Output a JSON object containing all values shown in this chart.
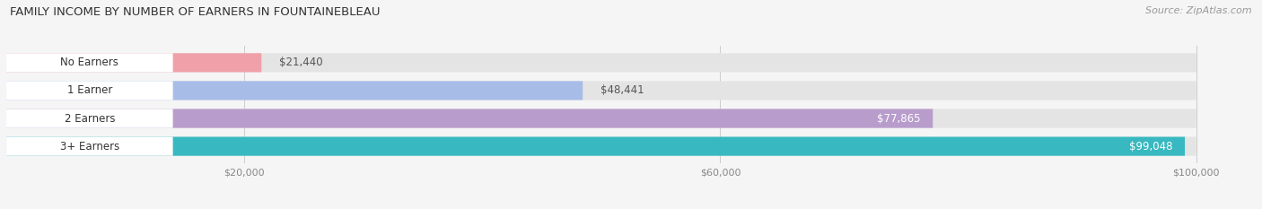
{
  "title": "FAMILY INCOME BY NUMBER OF EARNERS IN FOUNTAINEBLEAU",
  "source": "Source: ZipAtlas.com",
  "categories": [
    "No Earners",
    "1 Earner",
    "2 Earners",
    "3+ Earners"
  ],
  "values": [
    21440,
    48441,
    77865,
    99048
  ],
  "bar_colors": [
    "#f0a0a8",
    "#a8bce8",
    "#b89ccc",
    "#38b8c0"
  ],
  "label_colors": [
    "#444444",
    "#444444",
    "#ffffff",
    "#ffffff"
  ],
  "value_inside": [
    false,
    false,
    true,
    true
  ],
  "xlim_min": 0,
  "xlim_max": 105000,
  "data_max": 100000,
  "xticks": [
    20000,
    60000,
    100000
  ],
  "xticklabels": [
    "$20,000",
    "$60,000",
    "$100,000"
  ],
  "background_color": "#f5f5f5",
  "bar_bg_color": "#e4e4e4",
  "title_fontsize": 9.5,
  "source_fontsize": 8,
  "label_fontsize": 8.5,
  "cat_fontsize": 8.5,
  "tick_fontsize": 8,
  "bar_height": 0.68,
  "figsize": [
    14.06,
    2.33
  ],
  "dpi": 100
}
